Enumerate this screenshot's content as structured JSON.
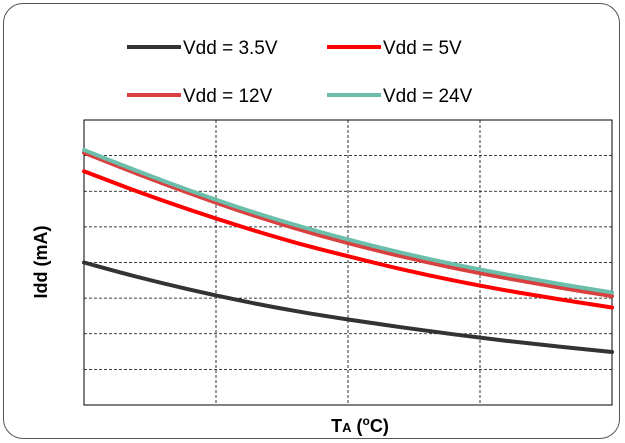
{
  "chart_data": {
    "type": "line",
    "title": "",
    "xlabel": "TA (oC)",
    "xlabel_main": "T",
    "xlabel_sub": "A",
    "xlabel_rest": " (",
    "xlabel_sup": "o",
    "xlabel_end": "C)",
    "ylabel": "Idd  (mA)",
    "tick_labels_shown": false,
    "grid": true,
    "grid_style": "dashed",
    "x_gridlines": 4,
    "y_gridlines": 8,
    "xlim": [
      0,
      1
    ],
    "ylim": [
      0,
      1
    ],
    "legend_position": "top-center",
    "series": [
      {
        "name": "Vdd = 3.5V",
        "color": "#333333",
        "x": [
          0,
          0.1,
          0.2,
          0.3,
          0.4,
          0.5,
          0.6,
          0.7,
          0.8,
          0.9,
          1.0
        ],
        "values": [
          0.5,
          0.45,
          0.405,
          0.365,
          0.33,
          0.3,
          0.273,
          0.248,
          0.225,
          0.205,
          0.186
        ]
      },
      {
        "name": "Vdd = 5V",
        "color": "#ff0000",
        "x": [
          0,
          0.1,
          0.2,
          0.3,
          0.4,
          0.5,
          0.6,
          0.7,
          0.8,
          0.9,
          1.0
        ],
        "values": [
          0.82,
          0.75,
          0.685,
          0.625,
          0.57,
          0.522,
          0.477,
          0.437,
          0.402,
          0.371,
          0.342
        ]
      },
      {
        "name": "Vdd = 12V",
        "color": "#d94040",
        "x": [
          0,
          0.1,
          0.2,
          0.3,
          0.4,
          0.5,
          0.6,
          0.7,
          0.8,
          0.9,
          1.0
        ],
        "values": [
          0.885,
          0.812,
          0.743,
          0.678,
          0.62,
          0.568,
          0.522,
          0.481,
          0.445,
          0.412,
          0.382
        ]
      },
      {
        "name": "Vdd = 24V",
        "color": "#6bbfaa",
        "x": [
          0,
          0.1,
          0.2,
          0.3,
          0.4,
          0.5,
          0.6,
          0.7,
          0.8,
          0.9,
          1.0
        ],
        "values": [
          0.895,
          0.822,
          0.753,
          0.689,
          0.632,
          0.581,
          0.535,
          0.494,
          0.458,
          0.425,
          0.395
        ]
      }
    ]
  }
}
